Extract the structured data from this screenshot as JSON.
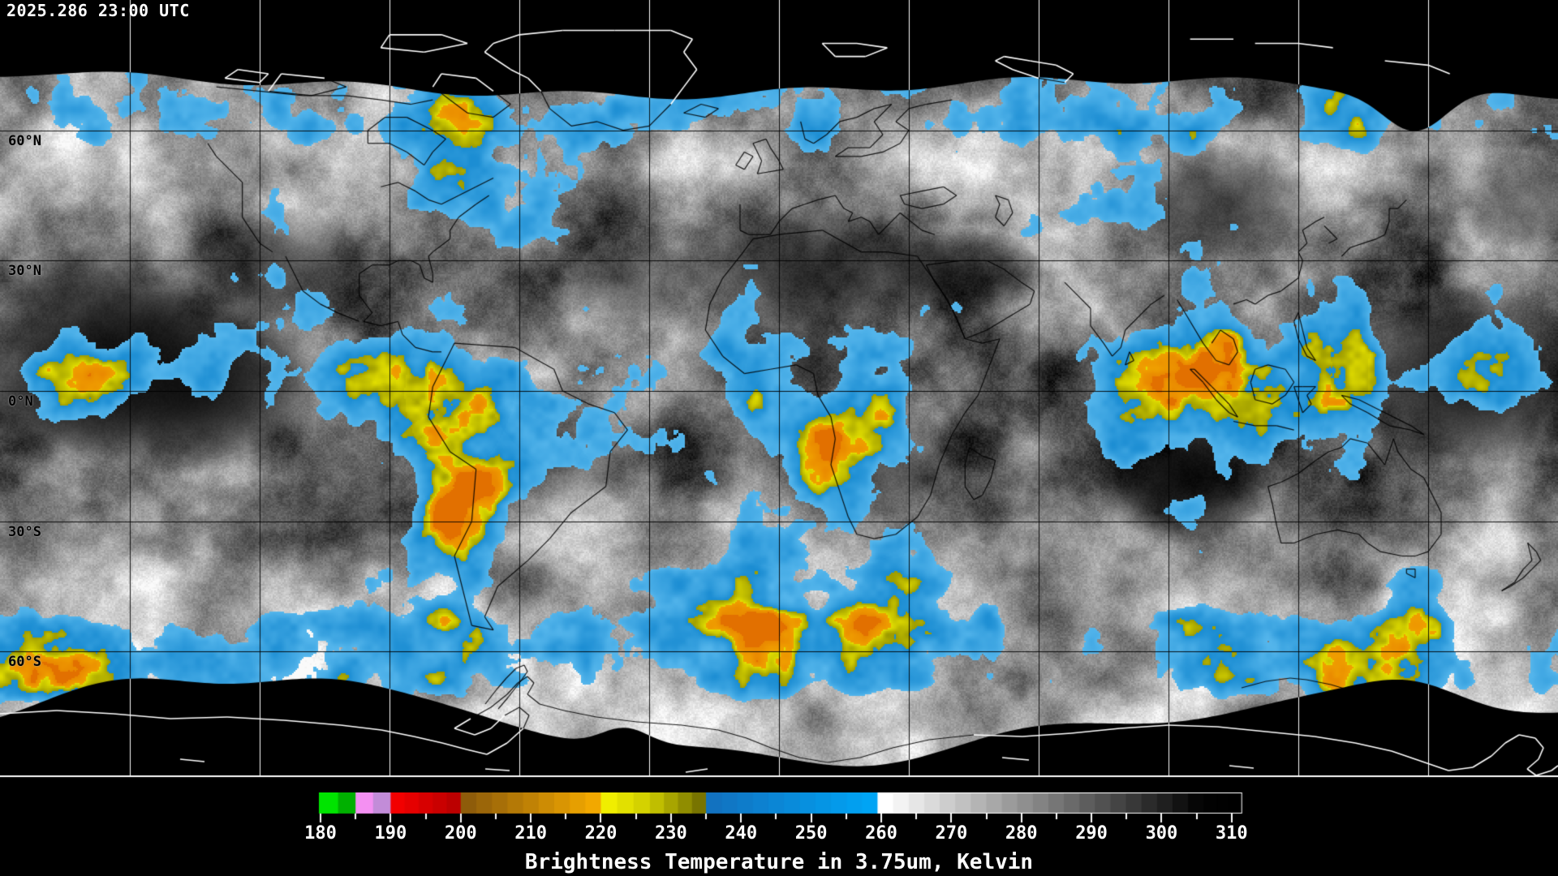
{
  "header": {
    "timestamp": "2025.286 23:00 UTC"
  },
  "map": {
    "latitude_labels": [
      {
        "text": "60°N",
        "lat": 60
      },
      {
        "text": "30°N",
        "lat": 30
      },
      {
        "text": "0°N",
        "lat": 0
      },
      {
        "text": "30°S",
        "lat": -30
      },
      {
        "text": "60°S",
        "lat": -60
      }
    ],
    "grid": {
      "lon_step_deg": 30,
      "lat_step_deg": 30,
      "line_color_on_data": "#000000",
      "line_color_on_black": "#ffffff"
    },
    "palette": {
      "no_data": "#000000",
      "cold_blue_dark": "#1a8cd2",
      "cold_blue_light": "#55b6ec",
      "cold_olive": "#9c9a00",
      "cold_yellow": "#e2de00",
      "cold_orange": "#f0a000",
      "cold_orange_deep": "#e27000",
      "coastline_on_data": "#000000",
      "coastline_on_black": "#ffffff"
    }
  },
  "colorbar": {
    "caption": "Brightness Temperature in 3.75um, Kelvin",
    "ticks": [
      180,
      190,
      200,
      210,
      220,
      230,
      240,
      250,
      260,
      270,
      280,
      290,
      300,
      310
    ],
    "minor_tick_step": 5,
    "tick_color": "#ffffff",
    "segments": [
      {
        "from": 180,
        "to": 185,
        "start_color": "#00e400",
        "end_color": "#00b000"
      },
      {
        "from": 185,
        "to": 190,
        "start_color": "#f490f2",
        "end_color": "#c28cd8"
      },
      {
        "from": 190,
        "to": 200,
        "start_color": "#f20000",
        "end_color": "#bc0000"
      },
      {
        "from": 200,
        "to": 220,
        "start_color": "#8e5c0a",
        "end_color": "#f2a800"
      },
      {
        "from": 220,
        "to": 227,
        "start_color": "#f0ee00",
        "end_color": "#d4d200"
      },
      {
        "from": 227,
        "to": 235,
        "start_color": "#c0be00",
        "end_color": "#787400"
      },
      {
        "from": 235,
        "to": 259.5,
        "start_color": "#1272c0",
        "end_color": "#00a4f4"
      },
      {
        "from": 259.5,
        "to": 306,
        "start_color": "#ffffff",
        "end_color": "#060606"
      },
      {
        "from": 306,
        "to": 311.5,
        "start_color": "#020202",
        "end_color": "#000000"
      }
    ]
  }
}
